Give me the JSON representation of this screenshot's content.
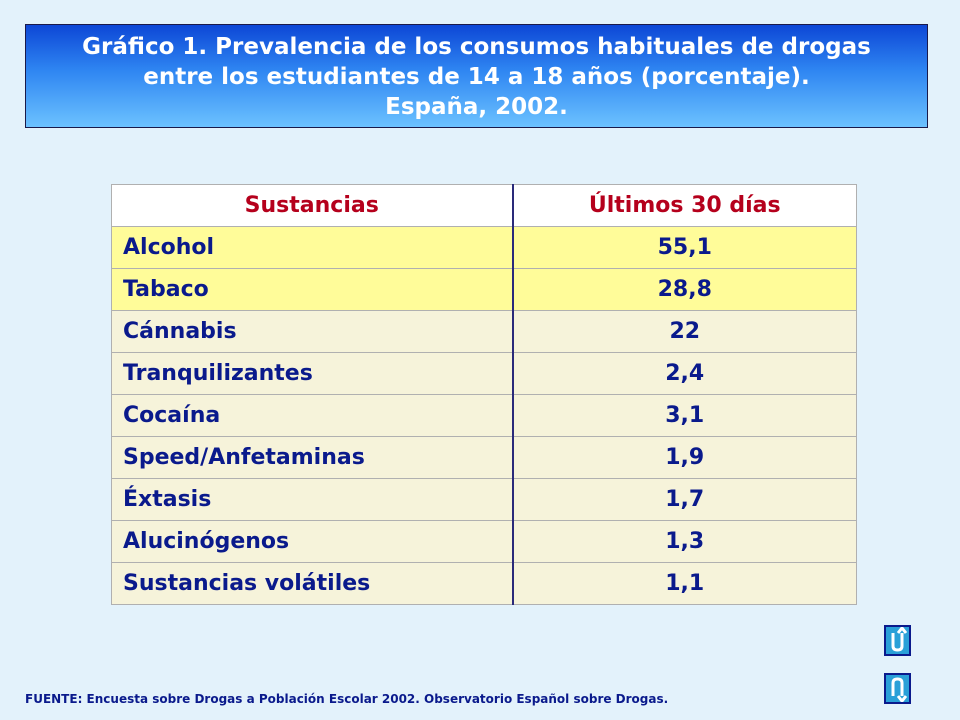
{
  "title": {
    "line1": "Gráfico 1. Prevalencia de los consumos habituales de drogas",
    "line2": "entre los estudiantes de 14 a 18 años (porcentaje).",
    "line3": "España, 2002."
  },
  "chart_data": {
    "type": "table",
    "title": "Gráfico 1. Prevalencia de los consumos habituales de drogas entre los estudiantes de 14 a 18 años (porcentaje). España, 2002.",
    "columns": [
      "Sustancias",
      "Últimos 30 días"
    ],
    "rows": [
      {
        "label": "Alcohol",
        "value": "55,1",
        "highlight": true
      },
      {
        "label": "Tabaco",
        "value": "28,8",
        "highlight": true
      },
      {
        "label": "Cánnabis",
        "value": "22",
        "highlight": false
      },
      {
        "label": "Tranquilizantes",
        "value": "2,4",
        "highlight": false
      },
      {
        "label": "Cocaína",
        "value": "3,1",
        "highlight": false
      },
      {
        "label": "Speed/Anfetaminas",
        "value": "1,9",
        "highlight": false
      },
      {
        "label": "Éxtasis",
        "value": "1,7",
        "highlight": false
      },
      {
        "label": "Alucinógenos",
        "value": "1,3",
        "highlight": false
      },
      {
        "label": "Sustancias volátiles",
        "value": "1,1",
        "highlight": false
      }
    ]
  },
  "footer": {
    "source": "FUENTE: Encuesta sobre Drogas a Población Escolar 2002. Observatorio Español sobre Drogas."
  },
  "navigation": {
    "up_icon": "return-up-icon",
    "down_icon": "return-down-icon"
  },
  "colors": {
    "background": "#e3f2fb",
    "header_text": "#b5001c",
    "body_text": "#0a1a8c",
    "highlight_row": "#fffc99",
    "normal_row": "#f6f3da"
  }
}
